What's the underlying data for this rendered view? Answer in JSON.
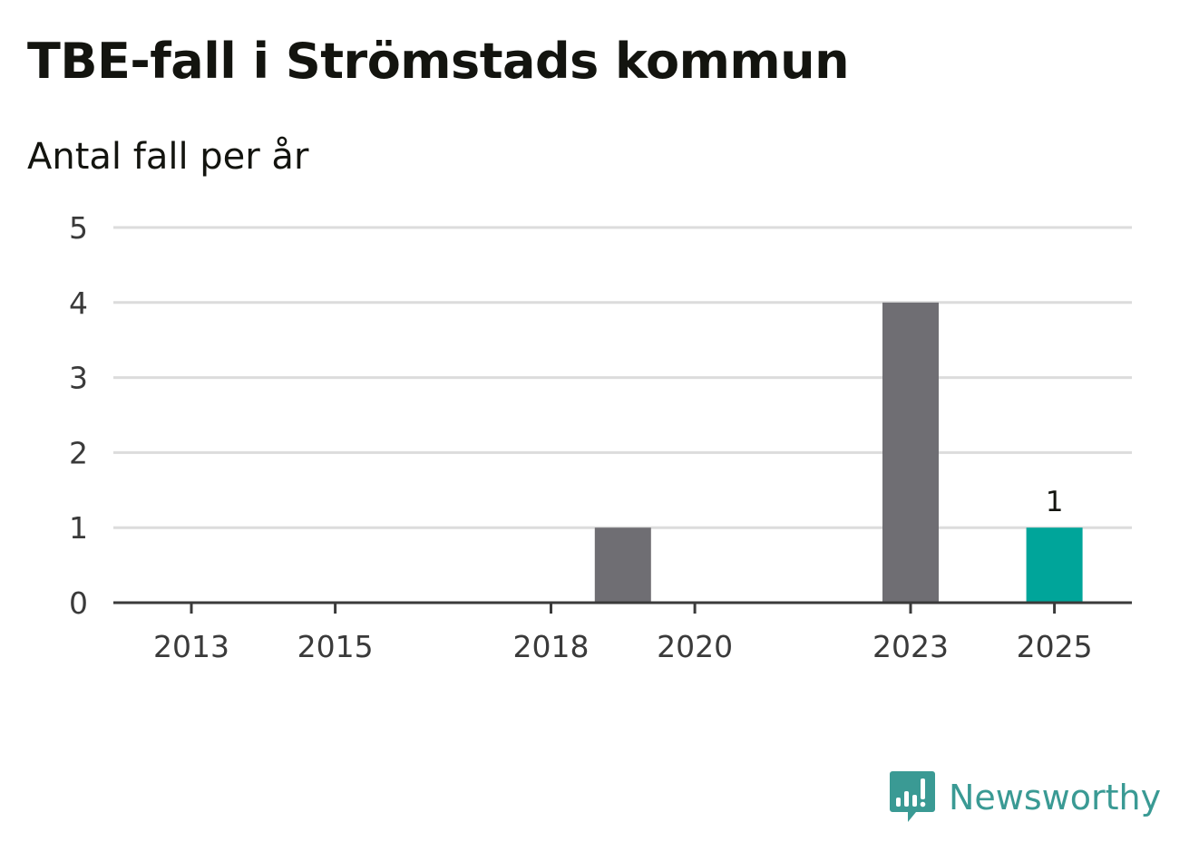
{
  "chart_data": {
    "type": "bar",
    "title": "TBE-fall i Strömstads kommun",
    "subtitle": "Antal fall per år",
    "x": [
      2013,
      2014,
      2015,
      2016,
      2017,
      2018,
      2019,
      2020,
      2021,
      2022,
      2023,
      2024,
      2025
    ],
    "values": [
      0,
      0,
      0,
      0,
      0,
      0,
      1,
      0,
      0,
      0,
      4,
      0,
      1
    ],
    "x_tick_labels": [
      "2013",
      "2015",
      "2018",
      "2020",
      "2023",
      "2025"
    ],
    "y_ticks": [
      0,
      1,
      2,
      3,
      4,
      5
    ],
    "ylim": [
      0,
      5
    ],
    "grid": true,
    "bar_color": "#6f6e73",
    "highlight_color": "#00a59a",
    "highlight_year": 2025,
    "data_labels": [
      {
        "x": 2025,
        "text": "1"
      }
    ]
  },
  "brand": {
    "name": "Newsworthy",
    "icon": "newsworthy-bar-chart-icon",
    "color": "#3a9a94"
  }
}
